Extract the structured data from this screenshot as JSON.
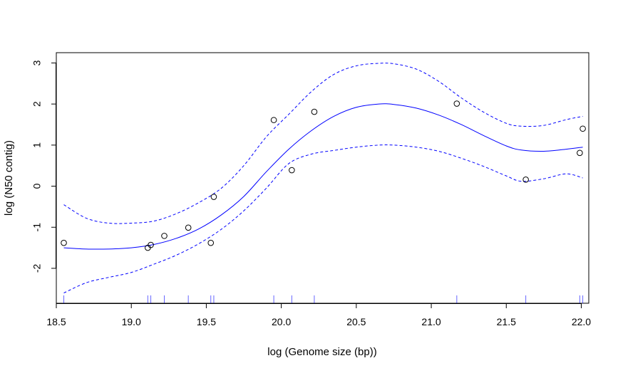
{
  "chart_data": {
    "type": "scatter",
    "title": "",
    "xlabel": "log (Genome size (bp))",
    "ylabel": "log (N50 contig)",
    "xlim": [
      18.5,
      22.05
    ],
    "ylim": [
      -2.85,
      3.25
    ],
    "xticks": [
      18.5,
      19.0,
      19.5,
      20.0,
      20.5,
      21.0,
      21.5,
      22.0
    ],
    "xtick_labels": [
      "18.5",
      "19.0",
      "19.5",
      "20.0",
      "20.5",
      "21.0",
      "21.5",
      "22.0"
    ],
    "yticks": [
      -2,
      -1,
      0,
      1,
      2,
      3
    ],
    "ytick_labels": [
      "-2",
      "-1",
      "0",
      "1",
      "2",
      "3"
    ],
    "grid": false,
    "legend": "none",
    "points": {
      "x": [
        18.55,
        19.11,
        19.13,
        19.22,
        19.38,
        19.53,
        19.55,
        19.95,
        20.07,
        20.22,
        21.17,
        21.63,
        21.99,
        22.01
      ],
      "y": [
        -1.38,
        -1.5,
        -1.43,
        -1.21,
        -1.01,
        -1.38,
        -0.26,
        1.61,
        0.39,
        1.81,
        2.01,
        0.16,
        0.81,
        1.4
      ]
    },
    "series": [
      {
        "role": "fit",
        "color": "#0000ff",
        "dash": "solid",
        "x": [
          18.55,
          18.7,
          18.85,
          19.0,
          19.15,
          19.3,
          19.45,
          19.6,
          19.75,
          19.9,
          20.05,
          20.2,
          20.35,
          20.5,
          20.65,
          20.75,
          20.9,
          21.05,
          21.2,
          21.35,
          21.5,
          21.6,
          21.75,
          21.9,
          22.01
        ],
        "y": [
          -1.5,
          -1.53,
          -1.53,
          -1.5,
          -1.42,
          -1.27,
          -1.04,
          -0.7,
          -0.25,
          0.35,
          0.9,
          1.35,
          1.7,
          1.92,
          2.0,
          1.99,
          1.9,
          1.73,
          1.5,
          1.23,
          0.98,
          0.88,
          0.85,
          0.9,
          0.95
        ]
      },
      {
        "role": "upper-band",
        "color": "#0000ff",
        "dash": "dashed",
        "x": [
          18.55,
          18.7,
          18.85,
          19.0,
          19.15,
          19.3,
          19.45,
          19.6,
          19.75,
          19.9,
          20.05,
          20.2,
          20.35,
          20.5,
          20.65,
          20.75,
          20.9,
          21.05,
          21.2,
          21.35,
          21.5,
          21.6,
          21.75,
          21.9,
          22.01
        ],
        "y": [
          -0.45,
          -0.78,
          -0.9,
          -0.9,
          -0.85,
          -0.67,
          -0.4,
          -0.05,
          0.5,
          1.2,
          1.75,
          2.3,
          2.72,
          2.93,
          2.99,
          2.98,
          2.85,
          2.55,
          2.15,
          1.8,
          1.53,
          1.46,
          1.48,
          1.62,
          1.7
        ]
      },
      {
        "role": "lower-band",
        "color": "#0000ff",
        "dash": "dashed",
        "x": [
          18.55,
          18.7,
          18.85,
          19.0,
          19.15,
          19.3,
          19.45,
          19.6,
          19.75,
          19.9,
          20.05,
          20.2,
          20.35,
          20.5,
          20.65,
          20.75,
          20.9,
          21.05,
          21.2,
          21.35,
          21.5,
          21.6,
          21.75,
          21.9,
          22.01
        ],
        "y": [
          -2.6,
          -2.35,
          -2.22,
          -2.1,
          -1.9,
          -1.68,
          -1.4,
          -1.05,
          -0.6,
          -0.05,
          0.55,
          0.78,
          0.87,
          0.95,
          1.0,
          1.0,
          0.95,
          0.85,
          0.68,
          0.48,
          0.25,
          0.12,
          0.18,
          0.3,
          0.2
        ]
      }
    ],
    "rug": {
      "color": "#0000ff",
      "x": [
        18.55,
        19.11,
        19.13,
        19.22,
        19.38,
        19.53,
        19.55,
        19.95,
        20.07,
        20.22,
        21.17,
        21.63,
        21.99,
        22.01
      ]
    }
  }
}
